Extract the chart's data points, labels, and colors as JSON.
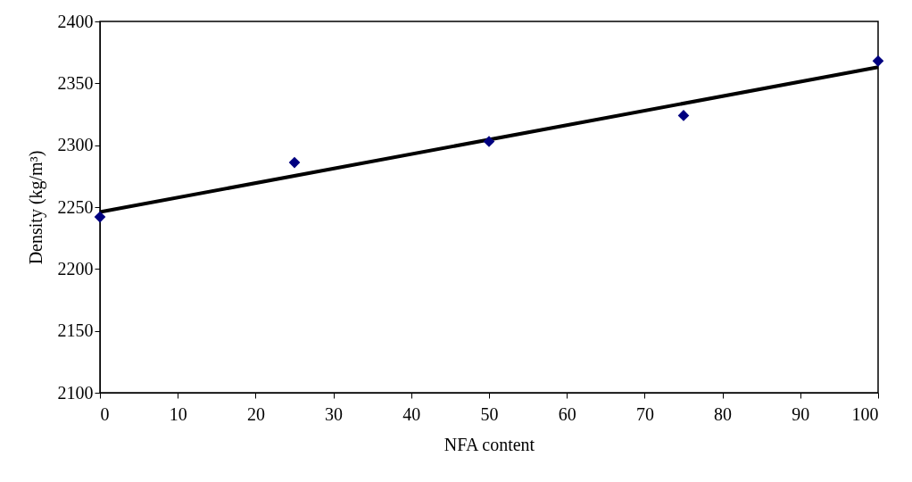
{
  "chart_data": {
    "type": "scatter",
    "xlabel": "NFA content",
    "ylabel": "Density (kg/m³)",
    "x": [
      0,
      25,
      50,
      75,
      100
    ],
    "series": [
      {
        "color": "#000080",
        "marker": "diamond",
        "values": [
          2242,
          2286,
          2303,
          2324,
          2368
        ]
      },
      {
        "type": "line",
        "color": "#000000",
        "marker": "none",
        "line_style": "solid",
        "x": [
          0,
          100
        ],
        "values": [
          2246,
          2363
        ]
      }
    ],
    "xlim": [
      0,
      100
    ],
    "xticks": [
      0,
      10,
      20,
      30,
      40,
      50,
      60,
      70,
      80,
      90,
      100
    ],
    "ylim": [
      2100,
      2400
    ],
    "yticks": [
      2100,
      2150,
      2200,
      2250,
      2300,
      2350,
      2400
    ],
    "grid": false
  }
}
